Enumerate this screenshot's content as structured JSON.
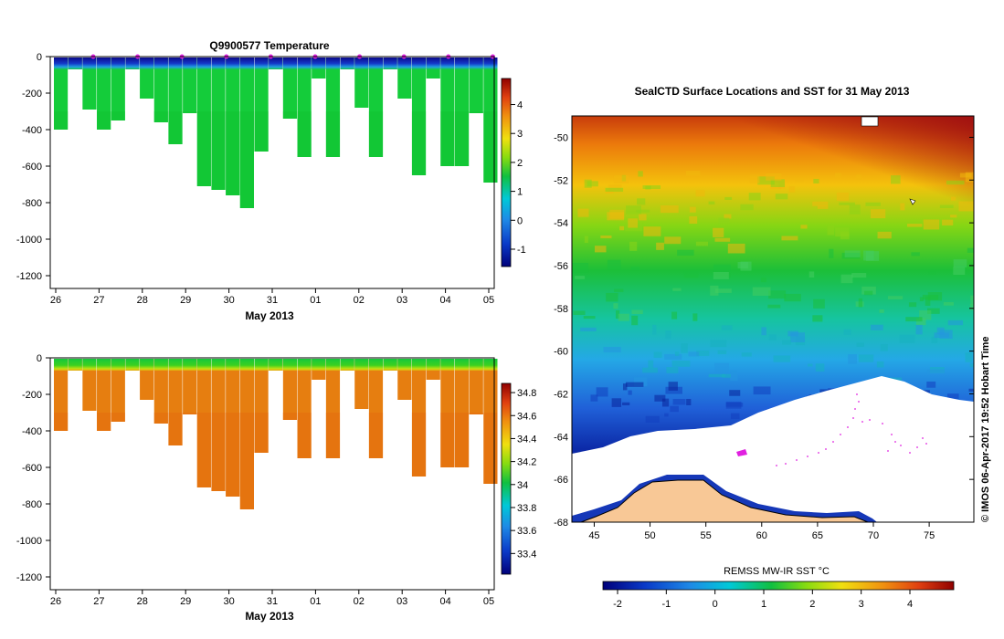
{
  "chart_data": [
    {
      "id": "temp",
      "type": "heatmap",
      "title": "Q9900577  Temperature",
      "xlabel": "May 2013",
      "ylabel": "",
      "x_ticks": [
        "26",
        "27",
        "28",
        "29",
        "30",
        "31",
        "01",
        "02",
        "03",
        "04",
        "05"
      ],
      "y_ticks": [
        "0",
        "-200",
        "-400",
        "-600",
        "-800",
        "-1000",
        "-1200"
      ],
      "ylim": [
        -1270,
        0
      ],
      "colorbar": {
        "ticks": [
          "-1",
          "0",
          "1",
          "2",
          "3",
          "4"
        ],
        "range": [
          -1.6,
          4.9
        ]
      },
      "surface_markers": 10,
      "profiles_depth_m": [
        400,
        70,
        290,
        400,
        350,
        70,
        230,
        360,
        480,
        310,
        710,
        730,
        760,
        830,
        520,
        70,
        340,
        550,
        120,
        550,
        70,
        280,
        550,
        70,
        230,
        650,
        120,
        600,
        600,
        310,
        690
      ],
      "layers": {
        "surface_band": "~ -1.5 °C (0-70 m)",
        "deep_water": "~ 1.2-1.6 °C"
      }
    },
    {
      "id": "salt",
      "type": "heatmap",
      "title": "",
      "xlabel": "May 2013",
      "ylabel": "",
      "x_ticks": [
        "26",
        "27",
        "28",
        "29",
        "30",
        "31",
        "01",
        "02",
        "03",
        "04",
        "05"
      ],
      "y_ticks": [
        "0",
        "-200",
        "-400",
        "-600",
        "-800",
        "-1000",
        "-1200"
      ],
      "ylim": [
        -1270,
        0
      ],
      "colorbar": {
        "ticks": [
          "33.4",
          "33.6",
          "33.8",
          "34",
          "34.2",
          "34.4",
          "34.6",
          "34.8"
        ],
        "range": [
          33.22,
          34.88
        ]
      },
      "profiles_depth_m": [
        400,
        70,
        290,
        400,
        350,
        70,
        230,
        360,
        480,
        310,
        710,
        730,
        760,
        830,
        520,
        70,
        340,
        550,
        120,
        550,
        70,
        280,
        550,
        70,
        230,
        650,
        120,
        600,
        600,
        310,
        690
      ],
      "layers": {
        "surface_band": "~ 33.9-34.0",
        "deep_water": "~ 34.6-34.7"
      }
    },
    {
      "id": "map",
      "type": "heatmap",
      "title": "SealCTD Surface Locations and SST for 31 May 2013",
      "xlabel": "",
      "ylabel": "",
      "x_ticks": [
        "45",
        "50",
        "55",
        "60",
        "65",
        "70",
        "75"
      ],
      "y_ticks": [
        "-50",
        "-52",
        "-54",
        "-56",
        "-58",
        "-60",
        "-62",
        "-64",
        "-66",
        "-68"
      ],
      "xlim": [
        43,
        79
      ],
      "ylim": [
        -68,
        -49
      ],
      "colorbar": {
        "label": "REMSS MW-IR SST °C",
        "ticks": [
          "-2",
          "-1",
          "0",
          "1",
          "2",
          "3",
          "4"
        ],
        "range": [
          -2.3,
          4.9
        ]
      },
      "credit": "© IMOS 06-Apr-2017 19:52 Hobart Time"
    }
  ],
  "colors": {
    "navy": "#0a1a8c",
    "blue": "#1e5adc",
    "cyan": "#24b4e6",
    "green": "#18c830",
    "orange": "#e8820f",
    "dark_red": "#a01010",
    "land": "#f8c896",
    "magenta": "#e020e0"
  }
}
